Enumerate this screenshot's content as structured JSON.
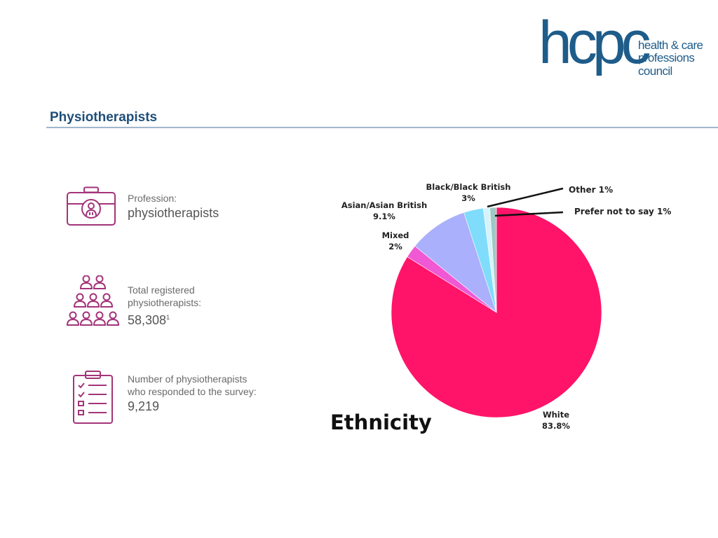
{
  "header": {
    "logo": {
      "word": "hcpc",
      "lines": [
        "health & care",
        "professions",
        "council"
      ]
    },
    "title": "Physiotherapists"
  },
  "stats": {
    "profession": {
      "label": "Profession:",
      "value": "physiotherapists",
      "icon": "briefcase-person-icon"
    },
    "registered": {
      "label_line1": "Total registered",
      "label_line2": "physiotherapists:",
      "value": "58,308",
      "footnote": "1",
      "icon": "people-group-icon"
    },
    "responded": {
      "label_line1": "Number of physiotherapists",
      "label_line2": "who responded to the survey:",
      "value": "9,219",
      "icon": "clipboard-checklist-icon"
    }
  },
  "colors": {
    "brand_blue": "#1e5c8a",
    "icon_magenta": "#a3347a",
    "title_blue": "#1f4e79"
  },
  "chart_data": {
    "type": "pie",
    "title": "Ethnicity",
    "start_angle_deg": 0,
    "slices": [
      {
        "label": "White",
        "value_label": "83.8%",
        "value": 83.8,
        "color": "#ff1469"
      },
      {
        "label": "Mixed",
        "value_label": "2%",
        "value": 2,
        "color": "#f058d4"
      },
      {
        "label": "Asian/Asian British",
        "value_label": "9.1%",
        "value": 9.1,
        "color": "#aab0fb"
      },
      {
        "label": "Black/Black British",
        "value_label": "3%",
        "value": 3,
        "color": "#7fdcfb"
      },
      {
        "label": "Other",
        "value_label": "1%",
        "value": 1,
        "color": "#d6f3fb"
      },
      {
        "label": "Prefer not to say",
        "value_label": "1%",
        "value": 1,
        "color": "#9ec9c4"
      }
    ]
  }
}
